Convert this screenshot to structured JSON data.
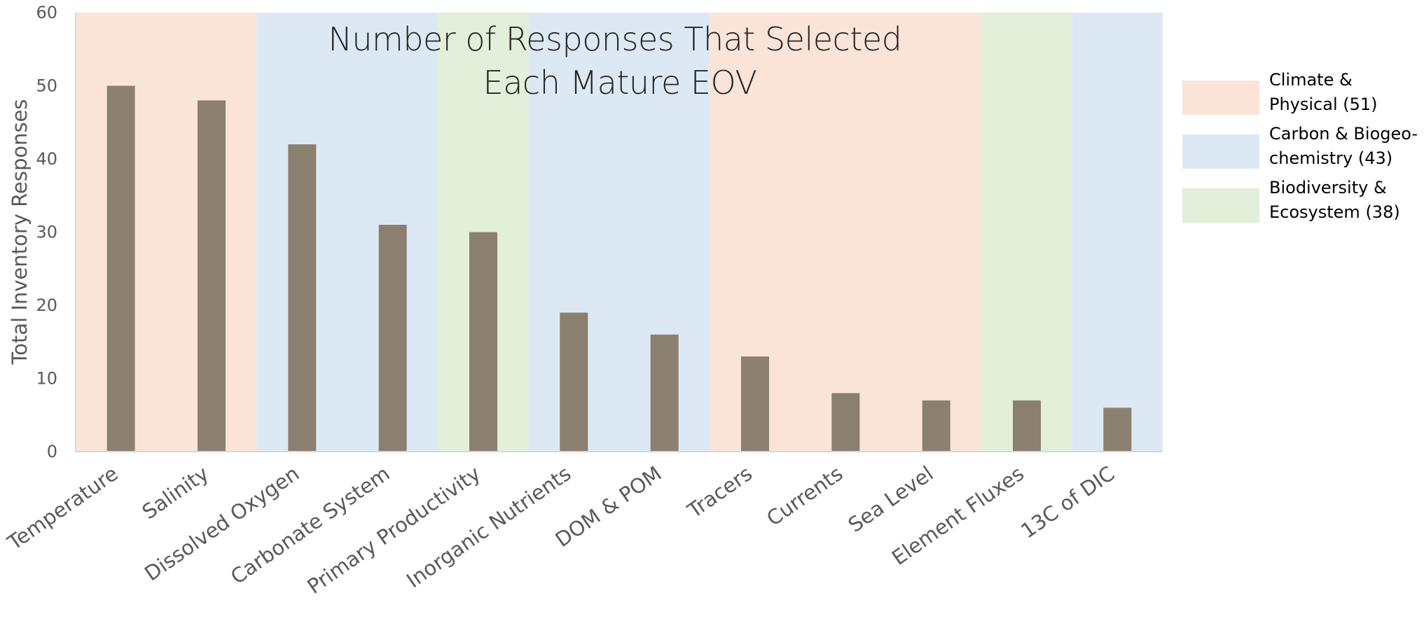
{
  "chart_data": {
    "type": "bar",
    "title": [
      "Number of Responses That Selected",
      "Each Mature EOV"
    ],
    "xlabel": "",
    "ylabel": "Total Inventory Responses",
    "ylim": [
      0,
      60
    ],
    "yticks": [
      0,
      10,
      20,
      30,
      40,
      50,
      60
    ],
    "grid": false,
    "legend_position": "right",
    "bar_color": "#8b8070",
    "categories": [
      "Temperature",
      "Salinity",
      "Dissolved Oxygen",
      "Carbonate System",
      "Primary Productivity",
      "Inorganic Nutrients",
      "DOM & POM",
      "Tracers",
      "Currents",
      "Sea Level",
      "Element Fluxes",
      "13C of DIC"
    ],
    "values": [
      50,
      48,
      42,
      31,
      30,
      19,
      16,
      13,
      8,
      7,
      7,
      6
    ],
    "category_groups": [
      "climate",
      "climate",
      "carbon",
      "carbon",
      "biodiversity",
      "carbon",
      "carbon",
      "climate",
      "climate",
      "climate",
      "biodiversity",
      "carbon"
    ],
    "groups": [
      {
        "key": "climate",
        "color": "#fae4d8",
        "label_lines": [
          "Climate &",
          "Physical (51)"
        ]
      },
      {
        "key": "carbon",
        "color": "#dde8f5",
        "label_lines": [
          "Carbon & Biogeo-",
          "chemistry (43)"
        ]
      },
      {
        "key": "biodiversity",
        "color": "#e2efd9",
        "label_lines": [
          "Biodiversity &",
          "Ecosystem (38)"
        ]
      }
    ]
  }
}
